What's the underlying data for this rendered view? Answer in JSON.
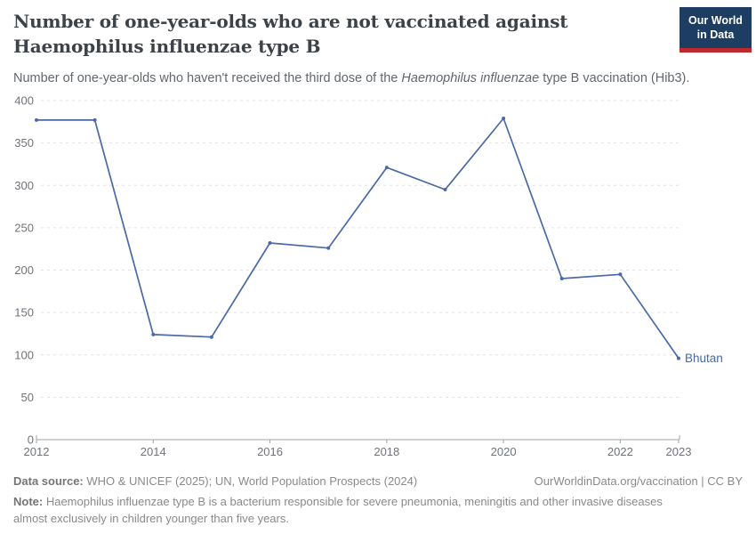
{
  "header": {
    "title": "Number of one-year-olds who are not vaccinated against Haemophilus influenzae type B",
    "subtitle_prefix": "Number of one-year-olds who haven't received the third dose of the ",
    "subtitle_italic": "Haemophilus influenzae",
    "subtitle_suffix": " type B vaccination (Hib3).",
    "logo_line1": "Our World",
    "logo_line2": "in Data"
  },
  "chart_data": {
    "type": "line",
    "x": [
      2012,
      2013,
      2014,
      2015,
      2016,
      2017,
      2018,
      2019,
      2020,
      2021,
      2022,
      2023
    ],
    "series": [
      {
        "name": "Bhutan",
        "values": [
          377,
          377,
          124,
          121,
          232,
          226,
          321,
          295,
          379,
          190,
          195,
          96
        ],
        "color": "#4a69a5"
      }
    ],
    "end_label": "Bhutan",
    "ylim": [
      0,
      400
    ],
    "y_ticks": [
      0,
      50,
      100,
      150,
      200,
      250,
      300,
      350,
      400
    ],
    "x_tick_labels": [
      2012,
      2014,
      2016,
      2018,
      2020,
      2022,
      2023
    ],
    "grid": "horizontal-dashed",
    "legend_position": "end-of-line",
    "axis_label_color": "#6e7379",
    "grid_color": "#e2e2e2",
    "axis_line_color": "#a3a3a3"
  },
  "footer": {
    "data_source_label": "Data source:",
    "data_source_text": " WHO & UNICEF (2025); UN, World Population Prospects (2024)",
    "rights_text": "OurWorldinData.org/vaccination | CC BY",
    "note_label": "Note:",
    "note_text": " Haemophilus influenzae type B is a bacterium responsible for severe pneumonia, meningitis and other invasive diseases almost exclusively in children younger than five years."
  }
}
